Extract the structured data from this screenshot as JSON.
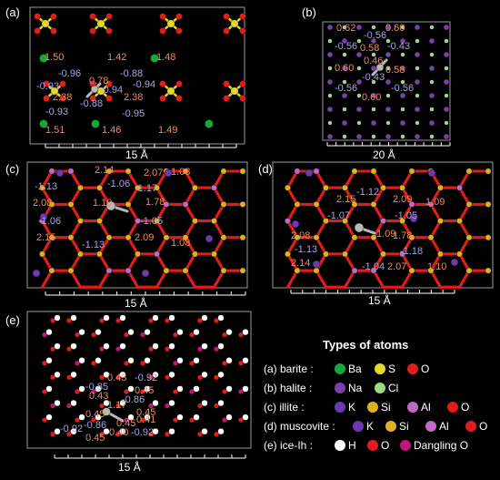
{
  "colors": {
    "O": "#e21b1b",
    "S": "#e3d82c",
    "Ba": "#18a63a",
    "Na": "#7a3fa8",
    "Cl": "#9ed98a",
    "K": "#6a3ab0",
    "Si": "#e0b020",
    "Al": "#c268c8",
    "H": "#ffffff",
    "Dangling_O": "#c4147a",
    "probe": "#b8b8b8",
    "positive_label": "#f08a5a",
    "negative_label": "#a6a4e8"
  },
  "panels": [
    {
      "letter": "(a)",
      "scale": "15 Å",
      "labels": [
        "1.50",
        "1.42",
        "1.48",
        "-0.96",
        "-0.88",
        "-0.93",
        "0.78",
        "-0.94",
        "2.38",
        "-0.94",
        "2.38",
        "-0.88",
        "-0.93",
        "-0.95",
        "1.51",
        "1.46",
        "1.49"
      ]
    },
    {
      "letter": "(b)",
      "scale": "20 Å",
      "labels": [
        "0.62",
        "0.60",
        "-0.56",
        "-0.56",
        "0.58",
        "-0.43",
        "0.46",
        "0.60",
        "0.58",
        "-0.43",
        "-0.56",
        "-0.56",
        "0.60"
      ]
    },
    {
      "letter": "(c)",
      "scale": "15 Å",
      "labels": [
        "2.14",
        "2.07",
        "1.08",
        "-1.13",
        "-1.06",
        "-1.17",
        "2.08",
        "1.10",
        "1.78",
        "-1.06",
        "-1.05",
        "2.15",
        "2.09",
        "1.08",
        "-1.13"
      ]
    },
    {
      "letter": "(d)",
      "scale": "15 Å",
      "labels": [
        "-1.12",
        "2.15",
        "2.09",
        "1.09",
        "-1.07",
        "-1.05",
        "1.09",
        "2.08",
        "1.78",
        "-1.13",
        "-1.18",
        "2.14",
        "-1.04",
        "2.07",
        "1.10"
      ]
    },
    {
      "letter": "(e)",
      "scale": "15 Å",
      "labels": [
        "0.43",
        "-0.92",
        "-0.85",
        "0.43",
        "0.45",
        "1.17",
        "-0.86",
        "0.45",
        "0.45",
        "-0.86",
        "0.45",
        "0.41",
        "0.45",
        "0.40",
        "-0.92",
        "-0.92"
      ]
    }
  ],
  "legend": {
    "title": "Types of atoms",
    "rows": [
      {
        "label": "(a) barite :",
        "items": [
          {
            "name": "Ba",
            "color": "#18a63a"
          },
          {
            "name": "S",
            "color": "#e3d82c"
          },
          {
            "name": "O",
            "color": "#e21b1b"
          }
        ]
      },
      {
        "label": "(b) halite :",
        "items": [
          {
            "name": "Na",
            "color": "#7a3fa8"
          },
          {
            "name": "Cl",
            "color": "#9ed98a"
          }
        ]
      },
      {
        "label": "(c) illite :",
        "items": [
          {
            "name": "K",
            "color": "#6a3ab0"
          },
          {
            "name": "Si",
            "color": "#e0b020"
          },
          {
            "name": "Al",
            "color": "#c268c8"
          },
          {
            "name": "O",
            "color": "#e21b1b"
          }
        ]
      },
      {
        "label": "(d) muscovite :",
        "items": [
          {
            "name": "K",
            "color": "#6a3ab0"
          },
          {
            "name": "Si",
            "color": "#e0b020"
          },
          {
            "name": "Al",
            "color": "#c268c8"
          },
          {
            "name": "O",
            "color": "#e21b1b"
          }
        ]
      },
      {
        "label": "(e) ice-Ih :",
        "items": [
          {
            "name": "H",
            "color": "#ffffff"
          },
          {
            "name": "O",
            "color": "#e21b1b"
          },
          {
            "name": "Dangling O",
            "color": "#c4147a"
          }
        ]
      }
    ]
  }
}
